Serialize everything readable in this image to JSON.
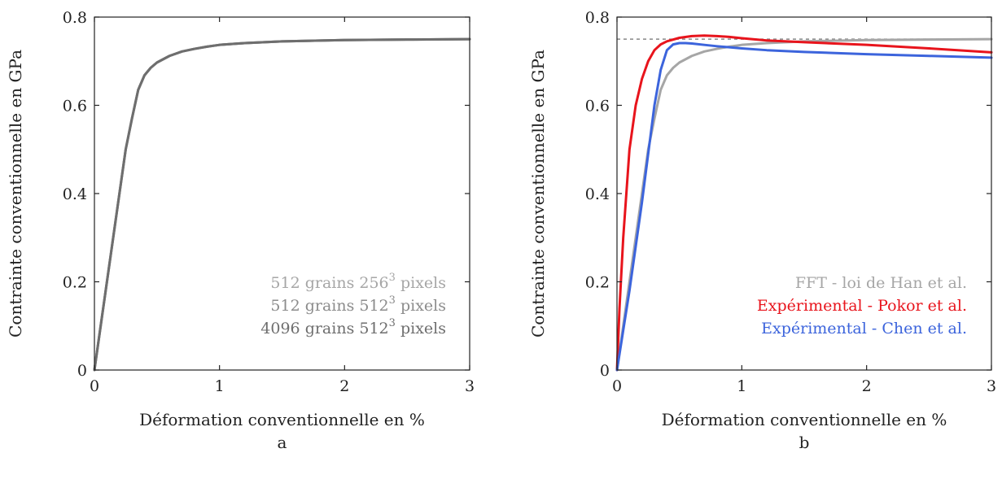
{
  "chart_data": [
    {
      "panel_label": "a",
      "type": "line",
      "xlabel": "Déformation conventionnelle en %",
      "ylabel": "Contrainte conventionnelle en GPa",
      "xlim": [
        0,
        3
      ],
      "ylim": [
        0,
        0.8
      ],
      "xticks": [
        "0",
        "1",
        "2",
        "3"
      ],
      "yticks": [
        "0",
        "0.2",
        "0.4",
        "0.6",
        "0.8"
      ],
      "grid": false,
      "legend_position": "bottom-right",
      "series": [
        {
          "name": "512 grains 256³ pixels",
          "name_parts": [
            "512 grains 256",
            "3",
            " pixels"
          ],
          "color": "#a6a6a6",
          "x": [
            0,
            0.05,
            0.1,
            0.15,
            0.2,
            0.25,
            0.3,
            0.35,
            0.4,
            0.45,
            0.5,
            0.6,
            0.7,
            0.8,
            0.9,
            1.0,
            1.2,
            1.5,
            2.0,
            2.5,
            3.0
          ],
          "y": [
            0,
            0.1,
            0.2,
            0.3,
            0.4,
            0.5,
            0.57,
            0.635,
            0.668,
            0.685,
            0.697,
            0.712,
            0.722,
            0.728,
            0.733,
            0.737,
            0.741,
            0.745,
            0.748,
            0.749,
            0.75
          ]
        },
        {
          "name": "512 grains 512³ pixels",
          "name_parts": [
            "512 grains 512",
            "3",
            " pixels"
          ],
          "color": "#8c8c8c",
          "x": [
            0,
            0.05,
            0.1,
            0.15,
            0.2,
            0.25,
            0.3,
            0.35,
            0.4,
            0.45,
            0.5,
            0.6,
            0.7,
            0.8,
            0.9,
            1.0,
            1.2,
            1.5,
            2.0,
            2.5,
            3.0
          ],
          "y": [
            0,
            0.1,
            0.2,
            0.3,
            0.4,
            0.5,
            0.57,
            0.635,
            0.668,
            0.685,
            0.697,
            0.712,
            0.722,
            0.728,
            0.733,
            0.737,
            0.741,
            0.745,
            0.748,
            0.749,
            0.75
          ]
        },
        {
          "name": "4096 grains 512³ pixels",
          "name_parts": [
            "4096 grains 512",
            "3",
            " pixels"
          ],
          "color": "#6e6e6e",
          "x": [
            0,
            0.05,
            0.1,
            0.15,
            0.2,
            0.25,
            0.3,
            0.35,
            0.4,
            0.45,
            0.5,
            0.6,
            0.7,
            0.8,
            0.9,
            1.0,
            1.2,
            1.5,
            2.0,
            2.5,
            3.0
          ],
          "y": [
            0,
            0.1,
            0.2,
            0.3,
            0.4,
            0.5,
            0.57,
            0.635,
            0.668,
            0.685,
            0.697,
            0.712,
            0.722,
            0.728,
            0.733,
            0.737,
            0.741,
            0.745,
            0.748,
            0.749,
            0.75
          ]
        }
      ]
    },
    {
      "panel_label": "b",
      "type": "line",
      "xlabel": "Déformation conventionnelle en %",
      "ylabel": "Contrainte conventionnelle en GPa",
      "xlim": [
        0,
        3
      ],
      "ylim": [
        0,
        0.8
      ],
      "xticks": [
        "0",
        "1",
        "2",
        "3"
      ],
      "yticks": [
        "0",
        "0.2",
        "0.4",
        "0.6",
        "0.8"
      ],
      "grid": false,
      "legend_position": "bottom-right",
      "reference_line": {
        "y": 0.75,
        "style": "dashed",
        "color": "#888888"
      },
      "series": [
        {
          "name": "FFT - loi de Han et al.",
          "color": "#a6a6a6",
          "x": [
            0,
            0.05,
            0.1,
            0.15,
            0.2,
            0.25,
            0.3,
            0.35,
            0.4,
            0.45,
            0.5,
            0.6,
            0.7,
            0.8,
            0.9,
            1.0,
            1.2,
            1.5,
            2.0,
            2.5,
            3.0
          ],
          "y": [
            0,
            0.1,
            0.2,
            0.3,
            0.4,
            0.5,
            0.57,
            0.635,
            0.668,
            0.685,
            0.697,
            0.712,
            0.722,
            0.728,
            0.733,
            0.737,
            0.741,
            0.745,
            0.748,
            0.749,
            0.75
          ]
        },
        {
          "name": "Expérimental - Pokor et al.",
          "color": "#e8141c",
          "x": [
            0,
            0.02,
            0.05,
            0.08,
            0.1,
            0.15,
            0.2,
            0.25,
            0.3,
            0.35,
            0.4,
            0.5,
            0.6,
            0.7,
            0.8,
            0.9,
            1.0,
            1.2,
            1.5,
            2.0,
            2.5,
            3.0
          ],
          "y": [
            0,
            0.14,
            0.3,
            0.42,
            0.5,
            0.6,
            0.66,
            0.7,
            0.725,
            0.738,
            0.745,
            0.753,
            0.757,
            0.758,
            0.757,
            0.755,
            0.752,
            0.747,
            0.743,
            0.737,
            0.729,
            0.72
          ]
        },
        {
          "name": "Expérimental - Chen et al.",
          "color": "#3c64dc",
          "x": [
            0,
            0.05,
            0.1,
            0.15,
            0.2,
            0.25,
            0.3,
            0.35,
            0.4,
            0.45,
            0.5,
            0.55,
            0.6,
            0.7,
            0.8,
            1.0,
            1.2,
            1.5,
            2.0,
            2.5,
            3.0
          ],
          "y": [
            0,
            0.09,
            0.18,
            0.28,
            0.38,
            0.49,
            0.6,
            0.68,
            0.725,
            0.738,
            0.741,
            0.741,
            0.74,
            0.737,
            0.734,
            0.729,
            0.725,
            0.721,
            0.716,
            0.712,
            0.708
          ]
        }
      ]
    }
  ]
}
